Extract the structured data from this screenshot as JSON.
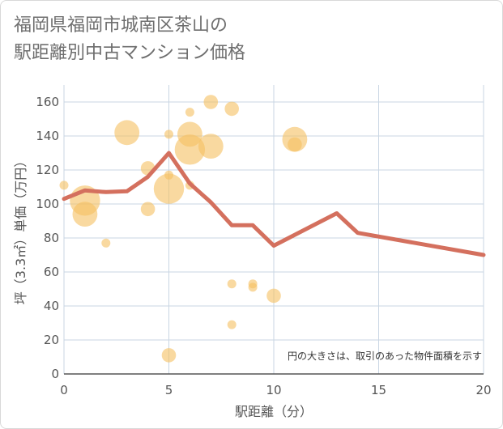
{
  "page": {
    "title": "福岡県福岡市城南区茶山の\n駅距離別中古マンション価格"
  },
  "chart_data": {
    "type": "scatter",
    "title": "福岡県福岡市城南区茶山の駅距離別中古マンション価格",
    "xlabel": "駅距離（分）",
    "ylabel": "坪（3.3㎡）単価（万円）",
    "xlim": [
      0,
      20
    ],
    "ylim": [
      0,
      170
    ],
    "x_ticks": [
      0,
      5,
      10,
      15,
      20
    ],
    "y_ticks": [
      0,
      20,
      40,
      60,
      80,
      100,
      120,
      140,
      160
    ],
    "grid": true,
    "note": "円の大きさは、取引のあった物件面積を示す",
    "bubble_color": "#f5c061",
    "line_color": "#d4705e",
    "points": [
      {
        "x": 0,
        "y": 111,
        "size": 1
      },
      {
        "x": 1,
        "y": 102,
        "size": 5
      },
      {
        "x": 1,
        "y": 94,
        "size": 4
      },
      {
        "x": 2,
        "y": 77,
        "size": 1
      },
      {
        "x": 3,
        "y": 142,
        "size": 4
      },
      {
        "x": 4,
        "y": 121,
        "size": 2
      },
      {
        "x": 4,
        "y": 97,
        "size": 2
      },
      {
        "x": 5,
        "y": 141,
        "size": 1
      },
      {
        "x": 5,
        "y": 117,
        "size": 1
      },
      {
        "x": 5,
        "y": 109,
        "size": 5
      },
      {
        "x": 5,
        "y": 11,
        "size": 2
      },
      {
        "x": 6,
        "y": 154,
        "size": 1
      },
      {
        "x": 6,
        "y": 141,
        "size": 4
      },
      {
        "x": 6,
        "y": 132,
        "size": 5
      },
      {
        "x": 6,
        "y": 111,
        "size": 1
      },
      {
        "x": 7,
        "y": 160,
        "size": 2
      },
      {
        "x": 7,
        "y": 134,
        "size": 4
      },
      {
        "x": 8,
        "y": 156,
        "size": 2
      },
      {
        "x": 8,
        "y": 53,
        "size": 1
      },
      {
        "x": 8,
        "y": 29,
        "size": 1
      },
      {
        "x": 9,
        "y": 53,
        "size": 1
      },
      {
        "x": 9,
        "y": 51,
        "size": 1
      },
      {
        "x": 10,
        "y": 46,
        "size": 2
      },
      {
        "x": 11,
        "y": 138,
        "size": 4
      },
      {
        "x": 11,
        "y": 135,
        "size": 2
      }
    ],
    "trend_line": {
      "x": [
        0,
        1,
        2,
        3,
        4,
        5,
        6,
        7,
        8,
        9,
        10,
        13,
        14,
        20
      ],
      "y": [
        103,
        108,
        107,
        107.5,
        116,
        130,
        112,
        101,
        87.5,
        87.5,
        75.5,
        94.5,
        83,
        70
      ]
    }
  }
}
